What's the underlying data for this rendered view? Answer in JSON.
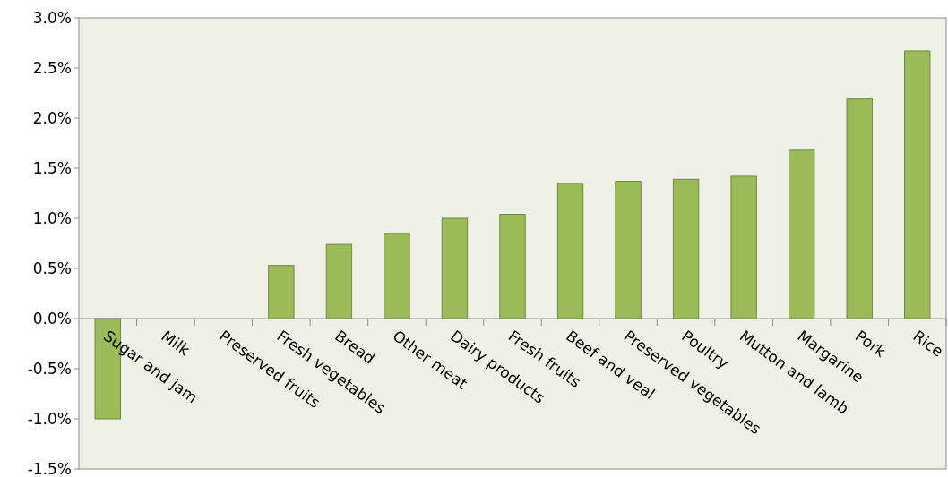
{
  "chart_data": {
    "type": "bar",
    "categories": [
      "Sugar and jam",
      "Milk",
      "Preserved fruits",
      "Fresh vegetables",
      "Bread",
      "Other meat",
      "Dairy products",
      "Fresh fruits",
      "Beef and veal",
      "Preserved vegetables",
      "Poultry",
      "Mutton and lamb",
      "Margarine",
      "Pork",
      "Rice"
    ],
    "values": [
      -1.0,
      0,
      0,
      0.53,
      0.74,
      0.85,
      1.0,
      1.04,
      1.35,
      1.37,
      1.39,
      1.42,
      1.68,
      2.19,
      2.67
    ],
    "color": "#9bbb59",
    "ylim": [
      -1.5,
      3.0
    ],
    "yticks": [
      {
        "value": -1.5,
        "label": "-1.5%"
      },
      {
        "value": -1.0,
        "label": "-1.0%"
      },
      {
        "value": -0.5,
        "label": "-0.5%"
      },
      {
        "value": 0,
        "label": "0.0%"
      },
      {
        "value": 0.5,
        "label": "0.5%"
      },
      {
        "value": 1.0,
        "label": "1.0%"
      },
      {
        "value": 1.5,
        "label": "1.5%"
      },
      {
        "value": 2.0,
        "label": "2.0%"
      },
      {
        "value": 2.5,
        "label": "2.5%"
      },
      {
        "value": 3.0,
        "label": "3.0%"
      }
    ],
    "grid": false
  }
}
